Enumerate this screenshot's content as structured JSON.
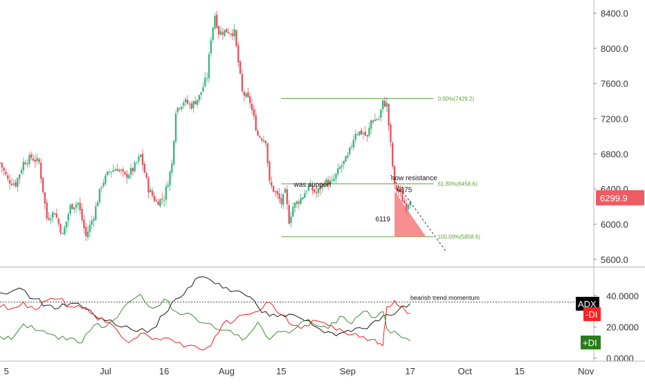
{
  "chart_data": [
    {
      "type": "candlestick",
      "pane": "price",
      "y_axis": {
        "ticks": [
          5600,
          6000,
          6400,
          6800,
          7200,
          7600,
          8000,
          8400
        ],
        "tick_labels": [
          "5600.0",
          "6000.0",
          "6400.0",
          "6800.0",
          "7200.0",
          "7600.0",
          "8000.0",
          "8400.0"
        ],
        "ylim": [
          5520,
          8550
        ]
      },
      "x_axis": {
        "tick_labels": [
          "5",
          "Jul",
          "16",
          "Aug",
          "15",
          "Sep",
          "17",
          "Oct",
          "15",
          "Nov"
        ],
        "tick_days": [
          -26,
          0,
          15,
          31,
          45,
          62,
          78,
          92,
          106,
          123
        ],
        "xlim_days": [
          -27,
          125
        ]
      },
      "colors": {
        "up": "#3cb67e",
        "down": "#e2555f",
        "fib": "#5b9e3c",
        "zone": "#f87a7e",
        "price_badge": "#ee5b63"
      },
      "candles": [],
      "close_series": [
        {
          "d": -27,
          "c": 6700
        },
        {
          "d": -25,
          "c": 6500
        },
        {
          "d": -23,
          "c": 6460
        },
        {
          "d": -21,
          "c": 6700
        },
        {
          "d": -19,
          "c": 6760
        },
        {
          "d": -17,
          "c": 6700
        },
        {
          "d": -15,
          "c": 6070
        },
        {
          "d": -13,
          "c": 6140
        },
        {
          "d": -11,
          "c": 5870
        },
        {
          "d": -9,
          "c": 6200
        },
        {
          "d": -7,
          "c": 6240
        },
        {
          "d": -5,
          "c": 5860
        },
        {
          "d": -3,
          "c": 6100
        },
        {
          "d": -1,
          "c": 6450
        },
        {
          "d": 1,
          "c": 6600
        },
        {
          "d": 3,
          "c": 6640
        },
        {
          "d": 5,
          "c": 6540
        },
        {
          "d": 7,
          "c": 6620
        },
        {
          "d": 9,
          "c": 6780
        },
        {
          "d": 11,
          "c": 6400
        },
        {
          "d": 13,
          "c": 6250
        },
        {
          "d": 15,
          "c": 6300
        },
        {
          "d": 17,
          "c": 6680
        },
        {
          "d": 18,
          "c": 7300
        },
        {
          "d": 20,
          "c": 7400
        },
        {
          "d": 22,
          "c": 7350
        },
        {
          "d": 24,
          "c": 7450
        },
        {
          "d": 26,
          "c": 7680
        },
        {
          "d": 27,
          "c": 8120
        },
        {
          "d": 28,
          "c": 8380
        },
        {
          "d": 29,
          "c": 8180
        },
        {
          "d": 31,
          "c": 8200
        },
        {
          "d": 33,
          "c": 8180
        },
        {
          "d": 35,
          "c": 7500
        },
        {
          "d": 37,
          "c": 7390
        },
        {
          "d": 39,
          "c": 7010
        },
        {
          "d": 41,
          "c": 6960
        },
        {
          "d": 42,
          "c": 6460
        },
        {
          "d": 44,
          "c": 6320
        },
        {
          "d": 45,
          "c": 6240
        },
        {
          "d": 46,
          "c": 6360
        },
        {
          "d": 47,
          "c": 6040
        },
        {
          "d": 48,
          "c": 6200
        },
        {
          "d": 50,
          "c": 6290
        },
        {
          "d": 52,
          "c": 6430
        },
        {
          "d": 54,
          "c": 6350
        },
        {
          "d": 56,
          "c": 6480
        },
        {
          "d": 58,
          "c": 6470
        },
        {
          "d": 60,
          "c": 6640
        },
        {
          "d": 62,
          "c": 6760
        },
        {
          "d": 64,
          "c": 7050
        },
        {
          "d": 66,
          "c": 7040
        },
        {
          "d": 67,
          "c": 6980
        },
        {
          "d": 68,
          "c": 7180
        },
        {
          "d": 70,
          "c": 7200
        },
        {
          "d": 71,
          "c": 7380
        },
        {
          "d": 72,
          "c": 7360
        },
        {
          "d": 73,
          "c": 6900
        },
        {
          "d": 74,
          "c": 6420
        },
        {
          "d": 75,
          "c": 6380
        },
        {
          "d": 76,
          "c": 6280
        },
        {
          "d": 77,
          "c": 6200
        },
        {
          "d": 78,
          "c": 6300
        }
      ],
      "current_price": {
        "label": "6299.9",
        "value": 6299.9
      },
      "fibonacci": [
        {
          "level": 0.0,
          "price": 7429.2,
          "label": "0.00%(7429.2)"
        },
        {
          "level": 0.618,
          "price": 6458.6,
          "label": "61.80%(6458.6)"
        },
        {
          "level": 1.0,
          "price": 5858.6,
          "label": "100.00%(5858.6)"
        }
      ],
      "fib_range_days": [
        45,
        84
      ],
      "trendline": {
        "from": {
          "d": 73,
          "price": 6560
        },
        "to": {
          "d": 87,
          "price": 5700
        },
        "style": "dashed"
      },
      "zone": {
        "points": [
          {
            "d": 74,
            "price": 6375
          },
          {
            "d": 82,
            "price": 5860
          },
          {
            "d": 74,
            "price": 5860
          }
        ]
      },
      "annotations": [
        {
          "text": "was support",
          "d": 53,
          "price": 6425
        },
        {
          "text": "now resistance",
          "d": 79,
          "price": 6500
        },
        {
          "text": "6375",
          "d": 76.5,
          "price": 6365
        },
        {
          "text": "6119",
          "d": 71,
          "price": 6030
        }
      ]
    },
    {
      "type": "line",
      "pane": "indicator",
      "y_axis": {
        "ticks": [
          0,
          20,
          40
        ],
        "tick_labels": [
          "0.0000",
          "20.0000",
          "40.0000"
        ],
        "ylim": [
          -1,
          58
        ]
      },
      "reference_line": {
        "value": 36,
        "label": "bearish trend momentum"
      },
      "series": [
        {
          "name": "ADX",
          "color": "#000000",
          "points": [
            [
              -27,
              42
            ],
            [
              -22,
              45
            ],
            [
              -18,
              38
            ],
            [
              -15,
              34
            ],
            [
              -12,
              32
            ],
            [
              -9,
              35
            ],
            [
              -6,
              33
            ],
            [
              -3,
              28
            ],
            [
              0,
              24
            ],
            [
              4,
              20
            ],
            [
              8,
              17
            ],
            [
              12,
              19
            ],
            [
              15,
              28
            ],
            [
              18,
              38
            ],
            [
              21,
              45
            ],
            [
              24,
              52
            ],
            [
              27,
              50
            ],
            [
              30,
              45
            ],
            [
              33,
              43
            ],
            [
              36,
              40
            ],
            [
              39,
              33
            ],
            [
              42,
              27
            ],
            [
              45,
              28
            ],
            [
              48,
              28
            ],
            [
              51,
              24
            ],
            [
              54,
              20
            ],
            [
              57,
              17
            ],
            [
              60,
              16
            ],
            [
              63,
              17
            ],
            [
              66,
              19
            ],
            [
              69,
              24
            ],
            [
              72,
              28
            ],
            [
              75,
              31
            ],
            [
              78,
              35
            ]
          ]
        },
        {
          "name": "-DI",
          "color": "#ff0000",
          "points": [
            [
              -27,
              33
            ],
            [
              -24,
              32
            ],
            [
              -21,
              36
            ],
            [
              -18,
              31
            ],
            [
              -15,
              37
            ],
            [
              -12,
              38
            ],
            [
              -9,
              33
            ],
            [
              -6,
              32
            ],
            [
              -3,
              28
            ],
            [
              0,
              23
            ],
            [
              3,
              18
            ],
            [
              6,
              10
            ],
            [
              9,
              16
            ],
            [
              12,
              12
            ],
            [
              15,
              13
            ],
            [
              18,
              10
            ],
            [
              21,
              8
            ],
            [
              24,
              6
            ],
            [
              27,
              8
            ],
            [
              30,
              22
            ],
            [
              33,
              24
            ],
            [
              36,
              28
            ],
            [
              39,
              30
            ],
            [
              42,
              36
            ],
            [
              45,
              28
            ],
            [
              48,
              21
            ],
            [
              51,
              21
            ],
            [
              54,
              24
            ],
            [
              57,
              21
            ],
            [
              60,
              19
            ],
            [
              63,
              15
            ],
            [
              66,
              14
            ],
            [
              69,
              12
            ],
            [
              71,
              8
            ],
            [
              72,
              33
            ],
            [
              74,
              37
            ],
            [
              76,
              33
            ],
            [
              78,
              29
            ]
          ]
        },
        {
          "name": "+DI",
          "color": "#2c7a1e",
          "points": [
            [
              -27,
              14
            ],
            [
              -24,
              12
            ],
            [
              -21,
              22
            ],
            [
              -18,
              18
            ],
            [
              -15,
              16
            ],
            [
              -12,
              12
            ],
            [
              -9,
              13
            ],
            [
              -6,
              10
            ],
            [
              -3,
              21
            ],
            [
              0,
              20
            ],
            [
              3,
              26
            ],
            [
              6,
              36
            ],
            [
              9,
              41
            ],
            [
              12,
              32
            ],
            [
              15,
              38
            ],
            [
              18,
              30
            ],
            [
              21,
              29
            ],
            [
              24,
              23
            ],
            [
              27,
              22
            ],
            [
              30,
              18
            ],
            [
              33,
              15
            ],
            [
              36,
              13
            ],
            [
              39,
              23
            ],
            [
              42,
              12
            ],
            [
              45,
              17
            ],
            [
              48,
              18
            ],
            [
              51,
              24
            ],
            [
              54,
              21
            ],
            [
              57,
              19
            ],
            [
              60,
              27
            ],
            [
              63,
              22
            ],
            [
              66,
              30
            ],
            [
              69,
              26
            ],
            [
              71,
              30
            ],
            [
              72,
              19
            ],
            [
              75,
              15
            ],
            [
              78,
              11
            ]
          ]
        }
      ],
      "value_badges": [
        {
          "label": "ADX",
          "color": "#000000"
        },
        {
          "label": "-DI",
          "color": "#ff2222"
        },
        {
          "label": "+DI",
          "color": "#2a7d1a"
        }
      ]
    }
  ]
}
